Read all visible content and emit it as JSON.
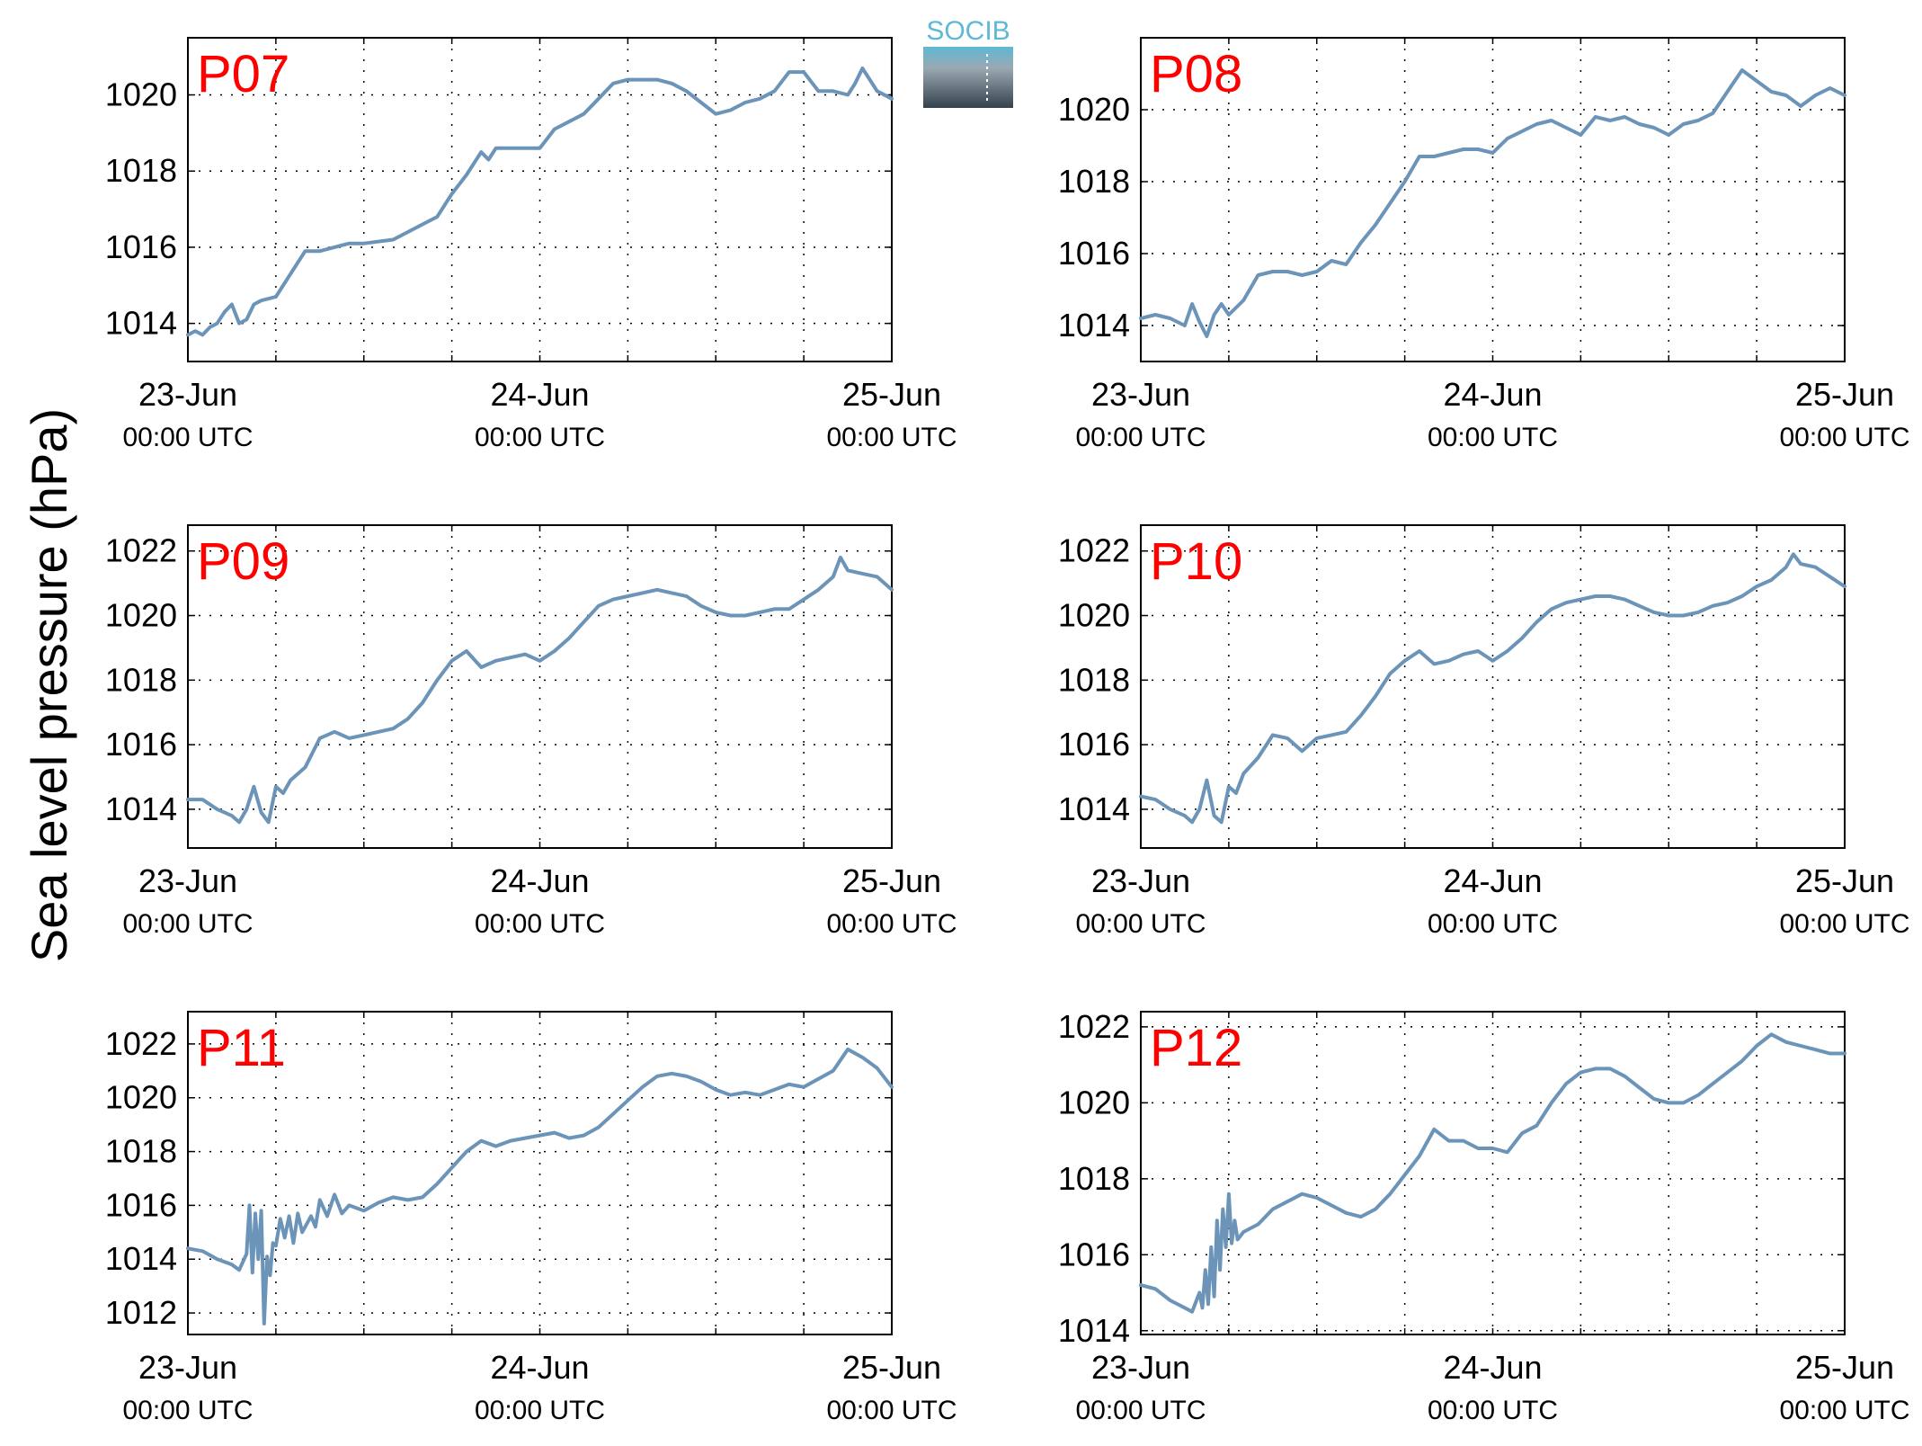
{
  "ylabel": "Sea level pressure (hPa)",
  "logo": {
    "text": "SOCIB"
  },
  "colors": {
    "line": "#6b94b8",
    "panel_label": "#ff0000",
    "logo_top": "#5fb8d4",
    "logo_bottom": "#33424c"
  },
  "chart_data": [
    {
      "type": "line",
      "title": "P07",
      "x_ticks": [
        {
          "main": "23-Jun",
          "sub": "00:00 UTC"
        },
        {
          "main": "24-Jun",
          "sub": "00:00 UTC"
        },
        {
          "main": "25-Jun",
          "sub": "00:00 UTC"
        }
      ],
      "xlim": [
        0,
        48
      ],
      "ylim": [
        1013,
        1021.5
      ],
      "yticks": [
        1014,
        1016,
        1018,
        1020
      ],
      "grid": true,
      "x": [
        0,
        0.5,
        1,
        1.5,
        2,
        2.5,
        3,
        3.5,
        4,
        4.5,
        5,
        6,
        7,
        8,
        9,
        10,
        11,
        12,
        14,
        16,
        17,
        18,
        19,
        20,
        20.5,
        21,
        22,
        23,
        24,
        25,
        26,
        27,
        28,
        29,
        30,
        31,
        32,
        33,
        34,
        35,
        36,
        37,
        38,
        39,
        40,
        41,
        42,
        43,
        44,
        45,
        45.5,
        46,
        47,
        48
      ],
      "values": [
        1013.7,
        1013.8,
        1013.7,
        1013.9,
        1014.0,
        1014.3,
        1014.5,
        1014.0,
        1014.1,
        1014.5,
        1014.6,
        1014.7,
        1015.3,
        1015.9,
        1015.9,
        1016.0,
        1016.1,
        1016.1,
        1016.2,
        1016.6,
        1016.8,
        1017.4,
        1017.9,
        1018.5,
        1018.3,
        1018.6,
        1018.6,
        1018.6,
        1018.6,
        1019.1,
        1019.3,
        1019.5,
        1019.9,
        1020.3,
        1020.4,
        1020.4,
        1020.4,
        1020.3,
        1020.1,
        1019.8,
        1019.5,
        1019.6,
        1019.8,
        1019.9,
        1020.1,
        1020.6,
        1020.6,
        1020.1,
        1020.1,
        1020.0,
        1020.3,
        1020.7,
        1020.1,
        1019.9
      ]
    },
    {
      "type": "line",
      "title": "P08",
      "x_ticks": [
        {
          "main": "23-Jun",
          "sub": "00:00 UTC"
        },
        {
          "main": "24-Jun",
          "sub": "00:00 UTC"
        },
        {
          "main": "25-Jun",
          "sub": "00:00 UTC"
        }
      ],
      "xlim": [
        0,
        48
      ],
      "ylim": [
        1013,
        1022
      ],
      "yticks": [
        1014,
        1016,
        1018,
        1020
      ],
      "grid": true,
      "x": [
        0,
        1,
        2,
        3,
        3.5,
        4,
        4.5,
        5,
        5.5,
        6,
        7,
        8,
        9,
        10,
        11,
        12,
        13,
        14,
        15,
        16,
        17,
        18,
        19,
        20,
        21,
        22,
        23,
        24,
        25,
        26,
        27,
        28,
        29,
        30,
        31,
        32,
        33,
        34,
        35,
        36,
        37,
        38,
        39,
        40,
        41,
        42,
        43,
        44,
        45,
        46,
        47,
        48
      ],
      "values": [
        1014.2,
        1014.3,
        1014.2,
        1014.0,
        1014.6,
        1014.1,
        1013.7,
        1014.3,
        1014.6,
        1014.3,
        1014.7,
        1015.4,
        1015.5,
        1015.5,
        1015.4,
        1015.5,
        1015.8,
        1015.7,
        1016.3,
        1016.8,
        1017.4,
        1018.0,
        1018.7,
        1018.7,
        1018.8,
        1018.9,
        1018.9,
        1018.8,
        1019.2,
        1019.4,
        1019.6,
        1019.7,
        1019.5,
        1019.3,
        1019.8,
        1019.7,
        1019.8,
        1019.6,
        1019.5,
        1019.3,
        1019.6,
        1019.7,
        1019.9,
        1020.5,
        1021.1,
        1020.8,
        1020.5,
        1020.4,
        1020.1,
        1020.4,
        1020.6,
        1020.4
      ]
    },
    {
      "type": "line",
      "title": "P09",
      "x_ticks": [
        {
          "main": "23-Jun",
          "sub": "00:00 UTC"
        },
        {
          "main": "24-Jun",
          "sub": "00:00 UTC"
        },
        {
          "main": "25-Jun",
          "sub": "00:00 UTC"
        }
      ],
      "xlim": [
        0,
        48
      ],
      "ylim": [
        1012.8,
        1022.8
      ],
      "yticks": [
        1014,
        1016,
        1018,
        1020,
        1022
      ],
      "grid": true,
      "x": [
        0,
        1,
        2,
        3,
        3.5,
        4,
        4.5,
        5,
        5.5,
        6,
        6.5,
        7,
        8,
        9,
        10,
        11,
        12,
        13,
        14,
        15,
        16,
        17,
        18,
        19,
        20,
        21,
        22,
        23,
        24,
        25,
        26,
        27,
        28,
        29,
        30,
        31,
        32,
        33,
        34,
        35,
        36,
        37,
        38,
        39,
        40,
        41,
        42,
        43,
        44,
        44.5,
        45,
        46,
        47,
        48
      ],
      "values": [
        1014.3,
        1014.3,
        1014.0,
        1013.8,
        1013.6,
        1014.0,
        1014.7,
        1013.9,
        1013.6,
        1014.7,
        1014.5,
        1014.9,
        1015.3,
        1016.2,
        1016.4,
        1016.2,
        1016.3,
        1016.4,
        1016.5,
        1016.8,
        1017.3,
        1018.0,
        1018.6,
        1018.9,
        1018.4,
        1018.6,
        1018.7,
        1018.8,
        1018.6,
        1018.9,
        1019.3,
        1019.8,
        1020.3,
        1020.5,
        1020.6,
        1020.7,
        1020.8,
        1020.7,
        1020.6,
        1020.3,
        1020.1,
        1020.0,
        1020.0,
        1020.1,
        1020.2,
        1020.2,
        1020.5,
        1020.8,
        1021.2,
        1021.8,
        1021.4,
        1021.3,
        1021.2,
        1020.8
      ]
    },
    {
      "type": "line",
      "title": "P10",
      "x_ticks": [
        {
          "main": "23-Jun",
          "sub": "00:00 UTC"
        },
        {
          "main": "24-Jun",
          "sub": "00:00 UTC"
        },
        {
          "main": "25-Jun",
          "sub": "00:00 UTC"
        }
      ],
      "xlim": [
        0,
        48
      ],
      "ylim": [
        1012.8,
        1022.8
      ],
      "yticks": [
        1014,
        1016,
        1018,
        1020,
        1022
      ],
      "grid": true,
      "x": [
        0,
        1,
        2,
        3,
        3.5,
        4,
        4.5,
        5,
        5.5,
        6,
        6.5,
        7,
        8,
        9,
        10,
        11,
        12,
        13,
        14,
        15,
        16,
        17,
        18,
        19,
        20,
        21,
        22,
        23,
        24,
        25,
        26,
        27,
        28,
        29,
        30,
        31,
        32,
        33,
        34,
        35,
        36,
        37,
        38,
        39,
        40,
        41,
        42,
        43,
        44,
        44.5,
        45,
        46,
        47,
        48
      ],
      "values": [
        1014.4,
        1014.3,
        1014.0,
        1013.8,
        1013.6,
        1014.0,
        1014.9,
        1013.8,
        1013.6,
        1014.7,
        1014.5,
        1015.1,
        1015.6,
        1016.3,
        1016.2,
        1015.8,
        1016.2,
        1016.3,
        1016.4,
        1016.9,
        1017.5,
        1018.2,
        1018.6,
        1018.9,
        1018.5,
        1018.6,
        1018.8,
        1018.9,
        1018.6,
        1018.9,
        1019.3,
        1019.8,
        1020.2,
        1020.4,
        1020.5,
        1020.6,
        1020.6,
        1020.5,
        1020.3,
        1020.1,
        1020.0,
        1020.0,
        1020.1,
        1020.3,
        1020.4,
        1020.6,
        1020.9,
        1021.1,
        1021.5,
        1021.9,
        1021.6,
        1021.5,
        1021.2,
        1020.9
      ]
    },
    {
      "type": "line",
      "title": "P11",
      "x_ticks": [
        {
          "main": "23-Jun",
          "sub": "00:00 UTC"
        },
        {
          "main": "24-Jun",
          "sub": "00:00 UTC"
        },
        {
          "main": "25-Jun",
          "sub": "00:00 UTC"
        }
      ],
      "xlim": [
        0,
        48
      ],
      "ylim": [
        1011.2,
        1023.2
      ],
      "yticks": [
        1012,
        1014,
        1016,
        1018,
        1020,
        1022
      ],
      "grid": true,
      "x": [
        0,
        1,
        2,
        3,
        3.5,
        4,
        4.2,
        4.4,
        4.6,
        4.8,
        5,
        5.2,
        5.4,
        5.6,
        5.8,
        6,
        6.3,
        6.6,
        6.9,
        7.2,
        7.5,
        7.8,
        8.1,
        8.4,
        8.7,
        9,
        9.5,
        10,
        10.5,
        11,
        12,
        13,
        14,
        15,
        16,
        17,
        18,
        19,
        20,
        21,
        22,
        23,
        24,
        25,
        26,
        27,
        28,
        29,
        30,
        31,
        32,
        33,
        34,
        35,
        36,
        37,
        38,
        39,
        40,
        41,
        42,
        43,
        44,
        45,
        46,
        47,
        48
      ],
      "values": [
        1014.4,
        1014.3,
        1014.0,
        1013.8,
        1013.6,
        1014.2,
        1016.0,
        1013.5,
        1015.7,
        1014.0,
        1015.8,
        1011.6,
        1014.1,
        1013.4,
        1014.6,
        1014.5,
        1015.5,
        1014.8,
        1015.6,
        1014.6,
        1015.7,
        1015.0,
        1015.3,
        1015.6,
        1015.2,
        1016.2,
        1015.6,
        1016.4,
        1015.7,
        1016.0,
        1015.8,
        1016.1,
        1016.3,
        1016.2,
        1016.3,
        1016.8,
        1017.4,
        1018.0,
        1018.4,
        1018.2,
        1018.4,
        1018.5,
        1018.6,
        1018.7,
        1018.5,
        1018.6,
        1018.9,
        1019.4,
        1019.9,
        1020.4,
        1020.8,
        1020.9,
        1020.8,
        1020.6,
        1020.3,
        1020.1,
        1020.2,
        1020.1,
        1020.3,
        1020.5,
        1020.4,
        1020.7,
        1021.0,
        1021.8,
        1021.5,
        1021.1,
        1020.4
      ]
    },
    {
      "type": "line",
      "title": "P12",
      "x_ticks": [
        {
          "main": "23-Jun",
          "sub": "00:00 UTC"
        },
        {
          "main": "24-Jun",
          "sub": "00:00 UTC"
        },
        {
          "main": "25-Jun",
          "sub": "00:00 UTC"
        }
      ],
      "xlim": [
        0,
        48
      ],
      "ylim": [
        1013.9,
        1022.4
      ],
      "yticks": [
        1014,
        1016,
        1018,
        1020,
        1022
      ],
      "grid": true,
      "x": [
        0,
        1,
        2,
        3,
        3.5,
        4,
        4.2,
        4.4,
        4.6,
        4.8,
        5,
        5.2,
        5.4,
        5.6,
        5.8,
        6,
        6.2,
        6.4,
        6.6,
        7,
        8,
        9,
        10,
        11,
        12,
        13,
        14,
        15,
        16,
        17,
        18,
        19,
        20,
        21,
        22,
        23,
        24,
        25,
        26,
        27,
        28,
        29,
        30,
        31,
        32,
        33,
        34,
        35,
        36,
        37,
        38,
        39,
        40,
        41,
        42,
        43,
        44,
        45,
        46,
        47,
        48
      ],
      "values": [
        1015.2,
        1015.1,
        1014.8,
        1014.6,
        1014.5,
        1015.0,
        1014.6,
        1015.6,
        1014.7,
        1016.2,
        1014.9,
        1016.9,
        1015.6,
        1017.2,
        1016.2,
        1017.6,
        1016.3,
        1016.9,
        1016.4,
        1016.6,
        1016.8,
        1017.2,
        1017.4,
        1017.6,
        1017.5,
        1017.3,
        1017.1,
        1017.0,
        1017.2,
        1017.6,
        1018.1,
        1018.6,
        1019.3,
        1019.0,
        1019.0,
        1018.8,
        1018.8,
        1018.7,
        1019.2,
        1019.4,
        1020.0,
        1020.5,
        1020.8,
        1020.9,
        1020.9,
        1020.7,
        1020.4,
        1020.1,
        1020.0,
        1020.0,
        1020.2,
        1020.5,
        1020.8,
        1021.1,
        1021.5,
        1021.8,
        1021.6,
        1021.5,
        1021.4,
        1021.3,
        1021.3
      ]
    }
  ]
}
